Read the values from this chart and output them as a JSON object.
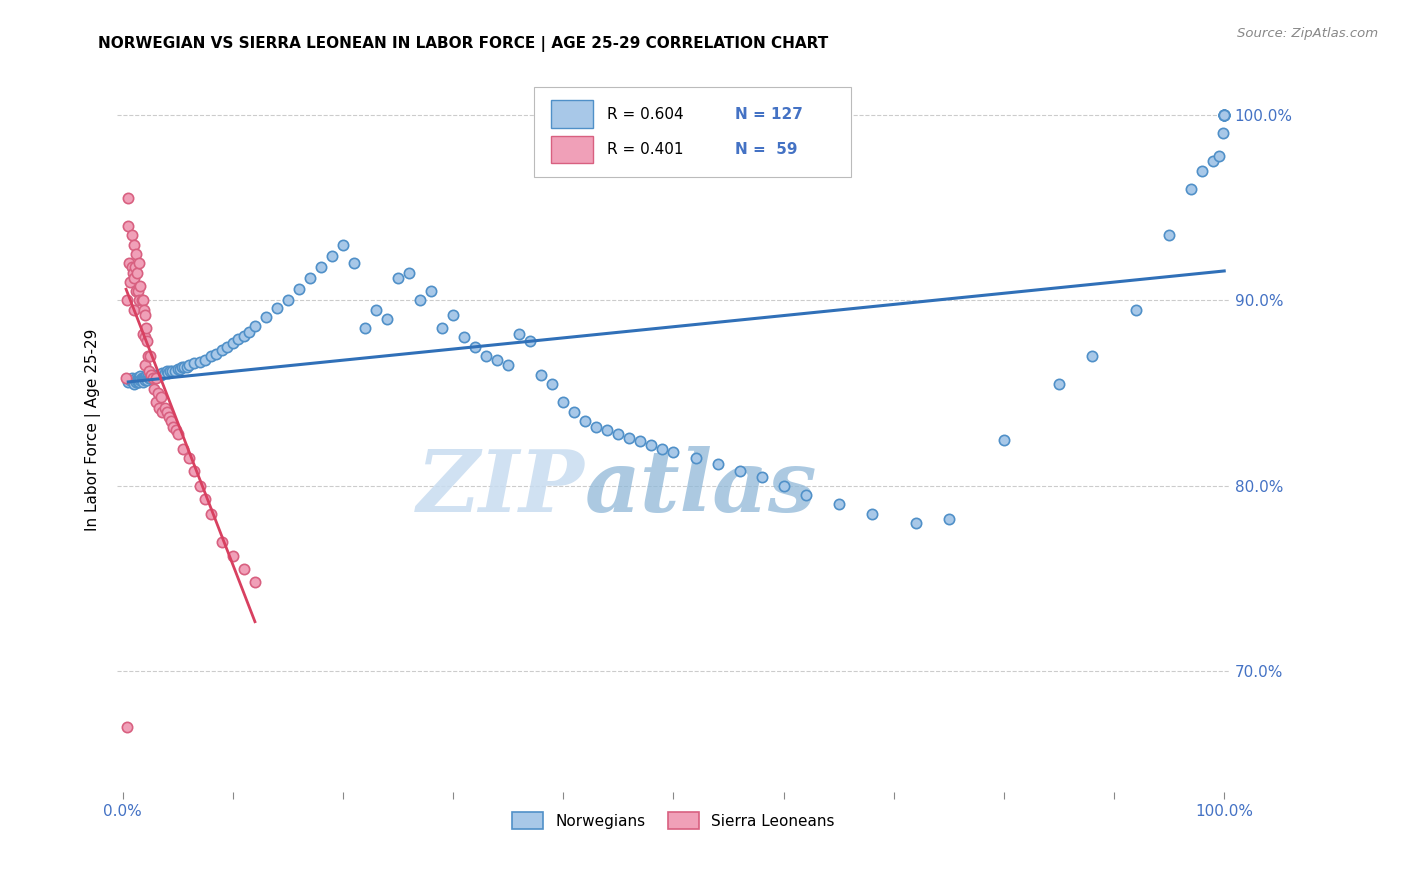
{
  "title": "NORWEGIAN VS SIERRA LEONEAN IN LABOR FORCE | AGE 25-29 CORRELATION CHART",
  "source": "Source: ZipAtlas.com",
  "ylabel": "In Labor Force | Age 25-29",
  "ytick_labels": [
    "70.0%",
    "80.0%",
    "90.0%",
    "100.0%"
  ],
  "ytick_positions": [
    0.7,
    0.8,
    0.9,
    1.0
  ],
  "watermark_zip": "ZIP",
  "watermark_atlas": "atlas",
  "legend_blue_label": "Norwegians",
  "legend_pink_label": "Sierra Leoneans",
  "legend_blue_r": "R = 0.604",
  "legend_blue_n": "N = 127",
  "legend_pink_r": "R = 0.401",
  "legend_pink_n": "N =  59",
  "blue_fill": "#A8C8E8",
  "blue_edge": "#5090C8",
  "pink_fill": "#F0A0B8",
  "pink_edge": "#D86080",
  "blue_line_color": "#3070B8",
  "pink_line_color": "#D84060",
  "dot_size": 55,
  "dot_linewidth": 1.2,
  "xmin": -0.005,
  "xmax": 1.005,
  "ymin": 0.635,
  "ymax": 1.025,
  "grid_color": "#CCCCCC",
  "tick_color": "#888888",
  "label_color": "#4472C4",
  "blue_scatter_x": [
    0.005,
    0.007,
    0.008,
    0.009,
    0.01,
    0.01,
    0.011,
    0.012,
    0.012,
    0.013,
    0.014,
    0.014,
    0.015,
    0.015,
    0.016,
    0.016,
    0.017,
    0.017,
    0.018,
    0.018,
    0.019,
    0.02,
    0.02,
    0.021,
    0.022,
    0.022,
    0.023,
    0.024,
    0.025,
    0.026,
    0.027,
    0.028,
    0.03,
    0.03,
    0.032,
    0.033,
    0.035,
    0.036,
    0.038,
    0.04,
    0.041,
    0.043,
    0.045,
    0.047,
    0.05,
    0.052,
    0.054,
    0.056,
    0.058,
    0.06,
    0.065,
    0.07,
    0.075,
    0.08,
    0.085,
    0.09,
    0.095,
    0.1,
    0.105,
    0.11,
    0.115,
    0.12,
    0.13,
    0.14,
    0.15,
    0.16,
    0.17,
    0.18,
    0.19,
    0.2,
    0.21,
    0.22,
    0.23,
    0.24,
    0.25,
    0.26,
    0.27,
    0.28,
    0.29,
    0.3,
    0.31,
    0.32,
    0.33,
    0.34,
    0.35,
    0.36,
    0.37,
    0.38,
    0.39,
    0.4,
    0.41,
    0.42,
    0.43,
    0.44,
    0.45,
    0.46,
    0.47,
    0.48,
    0.49,
    0.5,
    0.52,
    0.54,
    0.56,
    0.58,
    0.6,
    0.62,
    0.65,
    0.68,
    0.72,
    0.75,
    0.8,
    0.85,
    0.88,
    0.92,
    0.95,
    0.97,
    0.98,
    0.99,
    0.995,
    0.999,
    1.0,
    1.0,
    1.0,
    1.0,
    1.0,
    1.0,
    1.0
  ],
  "blue_scatter_y": [
    0.856,
    0.857,
    0.858,
    0.856,
    0.857,
    0.855,
    0.857,
    0.856,
    0.858,
    0.857,
    0.858,
    0.856,
    0.858,
    0.856,
    0.859,
    0.857,
    0.858,
    0.857,
    0.858,
    0.856,
    0.858,
    0.858,
    0.857,
    0.859,
    0.858,
    0.857,
    0.859,
    0.858,
    0.858,
    0.859,
    0.859,
    0.858,
    0.86,
    0.859,
    0.86,
    0.86,
    0.86,
    0.861,
    0.861,
    0.862,
    0.861,
    0.862,
    0.862,
    0.862,
    0.863,
    0.863,
    0.864,
    0.864,
    0.864,
    0.865,
    0.866,
    0.867,
    0.868,
    0.87,
    0.871,
    0.873,
    0.875,
    0.877,
    0.879,
    0.881,
    0.883,
    0.886,
    0.891,
    0.896,
    0.9,
    0.906,
    0.912,
    0.918,
    0.924,
    0.93,
    0.92,
    0.885,
    0.895,
    0.89,
    0.912,
    0.915,
    0.9,
    0.905,
    0.885,
    0.892,
    0.88,
    0.875,
    0.87,
    0.868,
    0.865,
    0.882,
    0.878,
    0.86,
    0.855,
    0.845,
    0.84,
    0.835,
    0.832,
    0.83,
    0.828,
    0.826,
    0.824,
    0.822,
    0.82,
    0.818,
    0.815,
    0.812,
    0.808,
    0.805,
    0.8,
    0.795,
    0.79,
    0.785,
    0.78,
    0.782,
    0.825,
    0.855,
    0.87,
    0.895,
    0.935,
    0.96,
    0.97,
    0.975,
    0.978,
    0.99,
    1.0,
    1.0,
    1.0,
    1.0,
    1.0,
    1.0,
    1.0
  ],
  "pink_scatter_x": [
    0.003,
    0.004,
    0.005,
    0.005,
    0.006,
    0.007,
    0.008,
    0.008,
    0.009,
    0.01,
    0.01,
    0.01,
    0.011,
    0.012,
    0.012,
    0.013,
    0.014,
    0.015,
    0.015,
    0.016,
    0.017,
    0.018,
    0.018,
    0.019,
    0.02,
    0.02,
    0.02,
    0.021,
    0.022,
    0.023,
    0.024,
    0.025,
    0.026,
    0.027,
    0.028,
    0.03,
    0.03,
    0.032,
    0.033,
    0.035,
    0.036,
    0.038,
    0.04,
    0.042,
    0.044,
    0.046,
    0.048,
    0.05,
    0.055,
    0.06,
    0.065,
    0.07,
    0.075,
    0.08,
    0.09,
    0.1,
    0.11,
    0.12,
    0.004
  ],
  "pink_scatter_y": [
    0.858,
    0.9,
    0.955,
    0.94,
    0.92,
    0.91,
    0.935,
    0.918,
    0.915,
    0.93,
    0.912,
    0.895,
    0.918,
    0.925,
    0.905,
    0.915,
    0.905,
    0.92,
    0.9,
    0.908,
    0.9,
    0.9,
    0.882,
    0.895,
    0.892,
    0.88,
    0.865,
    0.885,
    0.878,
    0.87,
    0.862,
    0.87,
    0.86,
    0.858,
    0.852,
    0.858,
    0.845,
    0.85,
    0.842,
    0.848,
    0.84,
    0.842,
    0.84,
    0.837,
    0.835,
    0.832,
    0.83,
    0.828,
    0.82,
    0.815,
    0.808,
    0.8,
    0.793,
    0.785,
    0.77,
    0.762,
    0.755,
    0.748,
    0.67
  ]
}
